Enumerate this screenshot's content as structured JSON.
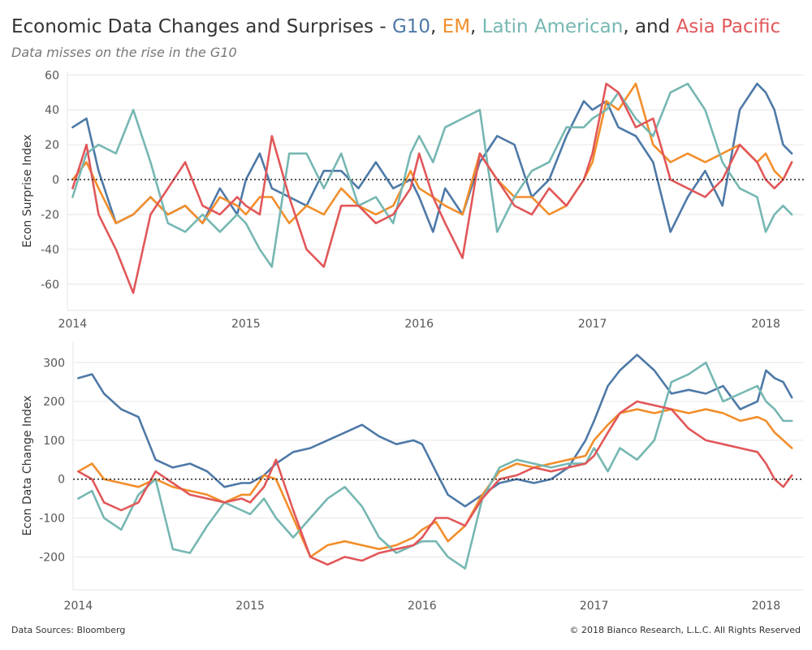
{
  "header": {
    "title_main": "Economic Data Changes and Surprises - ",
    "title_g10": "G10",
    "title_sep1": ", ",
    "title_em": "EM",
    "title_sep2": ", ",
    "title_latam": "Latin American",
    "title_sep3": ", and ",
    "title_apac": "Asia Pacific",
    "subtitle": "Data misses on the rise in the G10"
  },
  "footer": {
    "source": "Data Sources: Bloomberg",
    "copyright": "© 2018 Bianco Research, L.L.C. All Rights Reserved"
  },
  "colors": {
    "g10": "#4e79a7",
    "em": "#f28e2b",
    "latam": "#76b7b2",
    "apac": "#e15759",
    "grid": "#e6e6e6",
    "zero": "#222222"
  },
  "chart_data": [
    {
      "type": "line",
      "ylabel": "Econ Surprise Index",
      "xlabel": "",
      "xlim": [
        2013.97,
        2018.22
      ],
      "ylim": [
        -75,
        62
      ],
      "yticks": [
        60,
        40,
        20,
        0,
        -20,
        -40,
        -60
      ],
      "xticks": [
        2014,
        2015,
        2016,
        2017,
        2018
      ],
      "xtick_labels": [
        "2014",
        "2015",
        "2016",
        "2017",
        "2018"
      ],
      "zero_line": true,
      "series": [
        {
          "name": "G10",
          "x": [
            2014.0,
            2014.08,
            2014.15,
            2014.25,
            2014.35,
            2014.45,
            2014.55,
            2014.65,
            2014.75,
            2014.85,
            2014.95,
            2015.0,
            2015.08,
            2015.15,
            2015.25,
            2015.35,
            2015.45,
            2015.55,
            2015.65,
            2015.75,
            2015.85,
            2015.95,
            2016.0,
            2016.08,
            2016.15,
            2016.25,
            2016.35,
            2016.45,
            2016.55,
            2016.65,
            2016.75,
            2016.85,
            2016.95,
            2017.0,
            2017.08,
            2017.15,
            2017.25,
            2017.35,
            2017.45,
            2017.55,
            2017.65,
            2017.75,
            2017.85,
            2017.95,
            2018.0,
            2018.05,
            2018.1,
            2018.15
          ],
          "y": [
            30,
            35,
            5,
            -25,
            -20,
            -10,
            -20,
            -15,
            -25,
            -5,
            -20,
            0,
            15,
            -5,
            -10,
            -15,
            5,
            5,
            -5,
            10,
            -5,
            0,
            -10,
            -30,
            -5,
            -20,
            10,
            25,
            20,
            -10,
            0,
            25,
            45,
            40,
            45,
            30,
            25,
            10,
            -30,
            -10,
            5,
            -15,
            40,
            55,
            50,
            40,
            20,
            15
          ]
        },
        {
          "name": "EM",
          "x": [
            2014.0,
            2014.08,
            2014.15,
            2014.25,
            2014.35,
            2014.45,
            2014.55,
            2014.65,
            2014.75,
            2014.85,
            2014.95,
            2015.0,
            2015.08,
            2015.15,
            2015.25,
            2015.35,
            2015.45,
            2015.55,
            2015.65,
            2015.75,
            2015.85,
            2015.95,
            2016.0,
            2016.08,
            2016.15,
            2016.25,
            2016.35,
            2016.45,
            2016.55,
            2016.65,
            2016.75,
            2016.85,
            2016.95,
            2017.0,
            2017.08,
            2017.15,
            2017.25,
            2017.35,
            2017.45,
            2017.55,
            2017.65,
            2017.75,
            2017.85,
            2017.95,
            2018.0,
            2018.05,
            2018.1,
            2018.15
          ],
          "y": [
            0,
            10,
            -5,
            -25,
            -20,
            -10,
            -20,
            -15,
            -25,
            -10,
            -15,
            -20,
            -10,
            -10,
            -25,
            -15,
            -20,
            -5,
            -15,
            -20,
            -15,
            5,
            -5,
            -10,
            -15,
            -20,
            15,
            0,
            -10,
            -10,
            -20,
            -15,
            0,
            10,
            45,
            40,
            55,
            20,
            10,
            15,
            10,
            15,
            20,
            10,
            15,
            5,
            0,
            10
          ]
        },
        {
          "name": "Latin American",
          "x": [
            2014.0,
            2014.08,
            2014.15,
            2014.25,
            2014.35,
            2014.45,
            2014.55,
            2014.65,
            2014.75,
            2014.85,
            2014.95,
            2015.0,
            2015.08,
            2015.15,
            2015.25,
            2015.35,
            2015.45,
            2015.55,
            2015.65,
            2015.75,
            2015.85,
            2015.95,
            2016.0,
            2016.08,
            2016.15,
            2016.25,
            2016.35,
            2016.45,
            2016.55,
            2016.65,
            2016.75,
            2016.85,
            2016.95,
            2017.0,
            2017.08,
            2017.15,
            2017.25,
            2017.35,
            2017.45,
            2017.55,
            2017.65,
            2017.75,
            2017.85,
            2017.95,
            2018.0,
            2018.05,
            2018.1,
            2018.15
          ],
          "y": [
            -10,
            15,
            20,
            15,
            40,
            10,
            -25,
            -30,
            -20,
            -30,
            -20,
            -25,
            -40,
            -50,
            15,
            15,
            -5,
            15,
            -15,
            -10,
            -25,
            15,
            25,
            10,
            30,
            35,
            40,
            -30,
            -10,
            5,
            10,
            30,
            30,
            35,
            40,
            50,
            35,
            25,
            50,
            55,
            40,
            10,
            -5,
            -10,
            -30,
            -20,
            -15,
            -20
          ]
        },
        {
          "name": "Asia Pacific",
          "x": [
            2014.0,
            2014.08,
            2014.15,
            2014.25,
            2014.35,
            2014.45,
            2014.55,
            2014.65,
            2014.75,
            2014.85,
            2014.95,
            2015.0,
            2015.08,
            2015.15,
            2015.25,
            2015.35,
            2015.45,
            2015.55,
            2015.65,
            2015.75,
            2015.85,
            2015.95,
            2016.0,
            2016.08,
            2016.15,
            2016.25,
            2016.35,
            2016.45,
            2016.55,
            2016.65,
            2016.75,
            2016.85,
            2016.95,
            2017.0,
            2017.08,
            2017.15,
            2017.25,
            2017.35,
            2017.45,
            2017.55,
            2017.65,
            2017.75,
            2017.85,
            2017.95,
            2018.0,
            2018.05,
            2018.1,
            2018.15
          ],
          "y": [
            -5,
            20,
            -20,
            -40,
            -65,
            -20,
            -5,
            10,
            -15,
            -20,
            -10,
            -15,
            -20,
            25,
            -10,
            -40,
            -50,
            -15,
            -15,
            -25,
            -20,
            -5,
            15,
            -10,
            -25,
            -45,
            15,
            0,
            -15,
            -20,
            -5,
            -15,
            0,
            15,
            55,
            50,
            30,
            35,
            0,
            -5,
            -10,
            0,
            20,
            10,
            0,
            -5,
            0,
            10
          ]
        }
      ]
    },
    {
      "type": "line",
      "ylabel": "Econ Data Change Index",
      "xlabel": "",
      "xlim": [
        2013.97,
        2018.22
      ],
      "ylim": [
        -285,
        355
      ],
      "yticks": [
        300,
        200,
        100,
        0,
        -100,
        -200
      ],
      "xticks": [
        2014,
        2015,
        2016,
        2017,
        2018
      ],
      "xtick_labels": [
        "2014",
        "2015",
        "2016",
        "2017",
        "2018"
      ],
      "zero_line": true,
      "series": [
        {
          "name": "G10",
          "x": [
            2014.0,
            2014.08,
            2014.15,
            2014.25,
            2014.35,
            2014.45,
            2014.55,
            2014.65,
            2014.75,
            2014.85,
            2014.95,
            2015.0,
            2015.08,
            2015.15,
            2015.25,
            2015.35,
            2015.45,
            2015.55,
            2015.65,
            2015.75,
            2015.85,
            2015.95,
            2016.0,
            2016.08,
            2016.15,
            2016.25,
            2016.35,
            2016.45,
            2016.55,
            2016.65,
            2016.75,
            2016.85,
            2016.95,
            2017.0,
            2017.08,
            2017.15,
            2017.25,
            2017.35,
            2017.45,
            2017.55,
            2017.65,
            2017.75,
            2017.85,
            2017.95,
            2018.0,
            2018.05,
            2018.1,
            2018.15
          ],
          "y": [
            260,
            270,
            220,
            180,
            160,
            50,
            30,
            40,
            20,
            -20,
            -10,
            -10,
            10,
            40,
            70,
            80,
            100,
            120,
            140,
            110,
            90,
            100,
            90,
            20,
            -40,
            -70,
            -40,
            -10,
            0,
            -10,
            0,
            30,
            100,
            150,
            240,
            280,
            320,
            280,
            220,
            230,
            220,
            240,
            180,
            200,
            280,
            260,
            250,
            210
          ]
        },
        {
          "name": "EM",
          "x": [
            2014.0,
            2014.08,
            2014.15,
            2014.25,
            2014.35,
            2014.45,
            2014.55,
            2014.65,
            2014.75,
            2014.85,
            2014.95,
            2015.0,
            2015.08,
            2015.15,
            2015.25,
            2015.35,
            2015.45,
            2015.55,
            2015.65,
            2015.75,
            2015.85,
            2015.95,
            2016.0,
            2016.08,
            2016.15,
            2016.25,
            2016.35,
            2016.45,
            2016.55,
            2016.65,
            2016.75,
            2016.85,
            2016.95,
            2017.0,
            2017.08,
            2017.15,
            2017.25,
            2017.35,
            2017.45,
            2017.55,
            2017.65,
            2017.75,
            2017.85,
            2017.95,
            2018.0,
            2018.05,
            2018.1,
            2018.15
          ],
          "y": [
            20,
            40,
            0,
            -10,
            -20,
            0,
            -20,
            -30,
            -40,
            -60,
            -40,
            -40,
            10,
            0,
            -100,
            -200,
            -170,
            -160,
            -170,
            -180,
            -170,
            -150,
            -130,
            -110,
            -160,
            -120,
            -40,
            20,
            40,
            30,
            40,
            50,
            60,
            100,
            140,
            170,
            180,
            170,
            180,
            170,
            180,
            170,
            150,
            160,
            150,
            120,
            100,
            80
          ]
        },
        {
          "name": "Latin American",
          "x": [
            2014.0,
            2014.08,
            2014.15,
            2014.25,
            2014.35,
            2014.45,
            2014.55,
            2014.65,
            2014.75,
            2014.85,
            2014.95,
            2015.0,
            2015.08,
            2015.15,
            2015.25,
            2015.35,
            2015.45,
            2015.55,
            2015.65,
            2015.75,
            2015.85,
            2015.95,
            2016.0,
            2016.08,
            2016.15,
            2016.25,
            2016.35,
            2016.45,
            2016.55,
            2016.65,
            2016.75,
            2016.85,
            2016.95,
            2017.0,
            2017.08,
            2017.15,
            2017.25,
            2017.35,
            2017.45,
            2017.55,
            2017.65,
            2017.75,
            2017.85,
            2017.95,
            2018.0,
            2018.05,
            2018.1,
            2018.15
          ],
          "y": [
            -50,
            -30,
            -100,
            -130,
            -40,
            0,
            -180,
            -190,
            -120,
            -60,
            -80,
            -90,
            -50,
            -100,
            -150,
            -100,
            -50,
            -20,
            -70,
            -150,
            -190,
            -170,
            -160,
            -160,
            -200,
            -230,
            -50,
            30,
            50,
            40,
            30,
            40,
            40,
            80,
            20,
            80,
            50,
            100,
            250,
            270,
            300,
            200,
            220,
            240,
            200,
            180,
            150,
            150
          ]
        },
        {
          "name": "Asia Pacific",
          "x": [
            2014.0,
            2014.08,
            2014.15,
            2014.25,
            2014.35,
            2014.45,
            2014.55,
            2014.65,
            2014.75,
            2014.85,
            2014.95,
            2015.0,
            2015.08,
            2015.15,
            2015.25,
            2015.35,
            2015.45,
            2015.55,
            2015.65,
            2015.75,
            2015.85,
            2015.95,
            2016.0,
            2016.08,
            2016.15,
            2016.25,
            2016.35,
            2016.45,
            2016.55,
            2016.65,
            2016.75,
            2016.85,
            2016.95,
            2017.0,
            2017.08,
            2017.15,
            2017.25,
            2017.35,
            2017.45,
            2017.55,
            2017.65,
            2017.75,
            2017.85,
            2017.95,
            2018.0,
            2018.05,
            2018.1,
            2018.15
          ],
          "y": [
            20,
            0,
            -60,
            -80,
            -60,
            20,
            -10,
            -40,
            -50,
            -60,
            -50,
            -60,
            -20,
            50,
            -80,
            -200,
            -220,
            -200,
            -210,
            -190,
            -180,
            -170,
            -150,
            -100,
            -100,
            -120,
            -50,
            0,
            10,
            30,
            20,
            30,
            40,
            60,
            120,
            170,
            200,
            190,
            180,
            130,
            100,
            90,
            80,
            70,
            40,
            0,
            -20,
            10
          ]
        }
      ]
    }
  ]
}
